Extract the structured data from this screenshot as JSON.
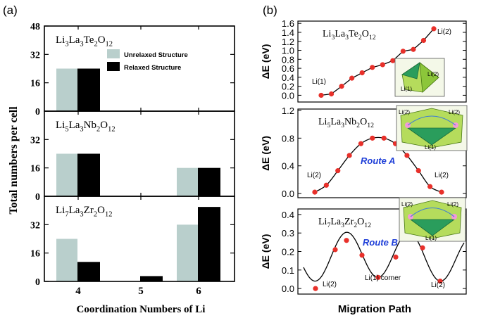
{
  "panel_labels": {
    "a": "(a)",
    "b": "(b)"
  },
  "colors": {
    "unrelaxed": "#b9cfcc",
    "relaxed": "#000000",
    "marker": "#e8302a",
    "route": "#2040d8",
    "inset": "#9ccc3c"
  },
  "left": {
    "ylabel": "Total numbers per cell",
    "xlabel": "Coordination Numbers of Li",
    "legend": {
      "unrelaxed": "Unrelaxed Structure",
      "relaxed": "Relaxed Structure"
    }
  },
  "right": {
    "ylabel": "ΔE (eV)",
    "xlabel": "Migration Path"
  },
  "chart_data": [
    {
      "type": "bar",
      "title": "Li3La3Te2O12",
      "categories": [
        "4",
        "5",
        "6"
      ],
      "series": [
        {
          "name": "Unrelaxed Structure",
          "values": [
            24,
            0,
            0
          ]
        },
        {
          "name": "Relaxed Structure",
          "values": [
            24,
            0,
            0
          ]
        }
      ],
      "yticks": [
        "0",
        "16",
        "32",
        "48"
      ],
      "ylim": [
        0,
        48
      ]
    },
    {
      "type": "bar",
      "title": "Li5La3Nb2O12",
      "categories": [
        "4",
        "5",
        "6"
      ],
      "series": [
        {
          "name": "Unrelaxed Structure",
          "values": [
            24,
            0,
            16
          ]
        },
        {
          "name": "Relaxed Structure",
          "values": [
            24,
            0,
            16
          ]
        }
      ],
      "yticks": [
        "0",
        "16",
        "32"
      ],
      "ylim": [
        0,
        48
      ]
    },
    {
      "type": "bar",
      "title": "Li7La3Zr2O12",
      "categories": [
        "4",
        "5",
        "6"
      ],
      "series": [
        {
          "name": "Unrelaxed Structure",
          "values": [
            24,
            0,
            32
          ]
        },
        {
          "name": "Relaxed Structure",
          "values": [
            11,
            3,
            42
          ]
        }
      ],
      "yticks": [
        "0",
        "16",
        "32"
      ],
      "ylim": [
        0,
        48
      ]
    },
    {
      "type": "line",
      "title": "Li3La3Te2O12",
      "y": [
        0.0,
        0.03,
        0.2,
        0.38,
        0.5,
        0.62,
        0.68,
        0.77,
        0.98,
        1.02,
        1.22,
        1.48
      ],
      "ylim": [
        -0.15,
        1.65
      ],
      "yticks": [
        "0.0",
        "0.2",
        "0.4",
        "0.6",
        "0.8",
        "1.0",
        "1.2",
        "1.4",
        "1.6"
      ],
      "annotations": [
        "Li(1)",
        "Li(2)"
      ],
      "inset_labels": [
        "Li(1)",
        "Li(2)"
      ]
    },
    {
      "type": "line",
      "title": "Li5La3Nb2O12",
      "y": [
        0.02,
        0.12,
        0.33,
        0.55,
        0.72,
        0.8,
        0.8,
        0.72,
        0.55,
        0.33,
        0.1,
        0.02
      ],
      "ylim": [
        -0.06,
        1.22
      ],
      "yticks": [
        "0.0",
        "0.4",
        "0.8",
        "1.2"
      ],
      "annotations": [
        "Li(2)",
        "Li(2)"
      ],
      "route": "Route A",
      "inset_labels": [
        "Li(2)",
        "Li(2)",
        "Li(1)"
      ]
    },
    {
      "type": "line",
      "title": "Li7La3Zr2O12",
      "y": [
        0.0,
        0.21,
        0.26,
        0.18,
        0.06,
        0.17,
        0.27,
        0.22,
        0.04
      ],
      "ylim": [
        -0.03,
        0.43
      ],
      "yticks": [
        "0.0",
        "0.1",
        "0.2",
        "0.3",
        "0.4"
      ],
      "annotations": [
        "Li(2)",
        "Li(1) corner",
        "Li(2)"
      ],
      "route": "Route B",
      "inset_labels": [
        "Li(2)",
        "Li(2)",
        "Li(1)"
      ]
    }
  ]
}
